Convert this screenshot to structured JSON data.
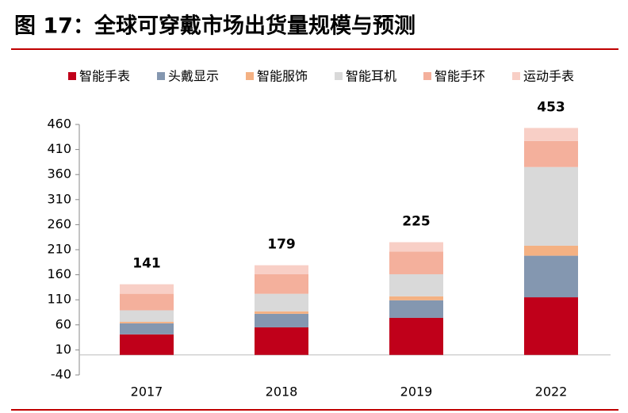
{
  "chart_data": {
    "type": "stacked_bar",
    "title": "图 17：全球可穿戴市场出货量规模与预测",
    "categories": [
      "2017",
      "2018",
      "2019",
      "2022"
    ],
    "series": [
      {
        "name": "智能手表",
        "color": "#c0001a",
        "values": [
          41,
          55,
          74,
          115
        ]
      },
      {
        "name": "头戴显示",
        "color": "#8497b0",
        "values": [
          22,
          27,
          35,
          83
        ]
      },
      {
        "name": "智能服饰",
        "color": "#f4b183",
        "values": [
          3,
          5,
          8,
          20
        ]
      },
      {
        "name": "智能耳机",
        "color": "#d9d9d9",
        "values": [
          23,
          35,
          44,
          157
        ]
      },
      {
        "name": "智能手环",
        "color": "#f4b09c",
        "values": [
          33,
          39,
          45,
          52
        ]
      },
      {
        "name": "运动手表",
        "color": "#f8cfc6",
        "values": [
          19,
          18,
          19,
          26
        ]
      }
    ],
    "totals": [
      141,
      179,
      225,
      453
    ],
    "ylim": [
      -40,
      460
    ],
    "yticks": [
      -40,
      10,
      60,
      110,
      160,
      210,
      260,
      310,
      360,
      410,
      460
    ],
    "grid": false
  }
}
